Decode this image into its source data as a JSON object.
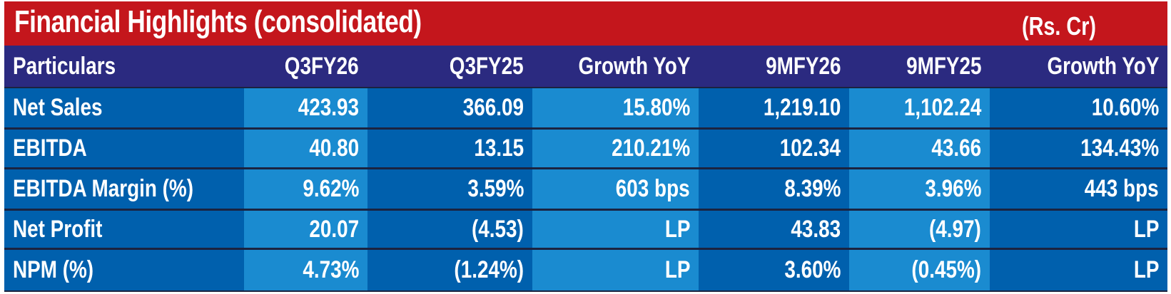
{
  "title": "Financial Highlights (consolidated)",
  "unit": "(Rs. Cr)",
  "colors": {
    "title_bg": "#c4161c",
    "header_bg": "#2b2a80",
    "dark_cell": "#0060ad",
    "light_cell": "#1a8bd0"
  },
  "headers": [
    "Particulars",
    "Q3FY26",
    "Q3FY25",
    "Growth YoY",
    "9MFY26",
    "9MFY25",
    "Growth YoY"
  ],
  "rows": [
    [
      "Net Sales",
      "423.93",
      "366.09",
      "15.80%",
      "1,219.10",
      "1,102.24",
      "10.60%"
    ],
    [
      "EBITDA",
      "40.80",
      "13.15",
      "210.21%",
      "102.34",
      "43.66",
      "134.43%"
    ],
    [
      "EBITDA Margin (%)",
      "9.62%",
      "3.59%",
      "603 bps",
      "8.39%",
      "3.96%",
      "443 bps"
    ],
    [
      "Net Profit",
      "20.07",
      "(4.53)",
      "LP",
      "43.83",
      "(4.97)",
      "LP"
    ],
    [
      "NPM (%)",
      "4.73%",
      "(1.24%)",
      "LP",
      "3.60%",
      "(0.45%)",
      "LP"
    ]
  ]
}
